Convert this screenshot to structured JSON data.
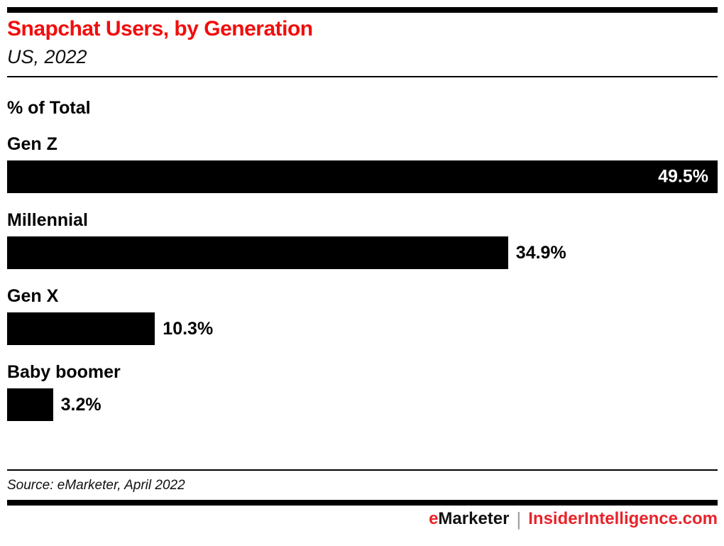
{
  "header": {
    "title": "Snapchat Users, by Generation",
    "subtitle": "US, 2022"
  },
  "chart_data": {
    "type": "bar",
    "orientation": "horizontal",
    "title": "Snapchat Users, by Generation",
    "subtitle": "US, 2022",
    "axis_title": "% of Total",
    "categories": [
      "Gen Z",
      "Millennial",
      "Gen X",
      "Baby boomer"
    ],
    "values": [
      49.5,
      34.9,
      10.3,
      3.2
    ],
    "value_labels": [
      "49.5%",
      "34.9%",
      "10.3%",
      "3.2%"
    ],
    "unit": "% of total",
    "xlim": [
      0,
      49.5
    ],
    "bar_color": "#000000",
    "value_label_positions": [
      "inside-end",
      "outside-end",
      "outside-end",
      "outside-end"
    ],
    "grid": false,
    "legend": false
  },
  "footer": {
    "source": "Source: eMarketer, April 2022",
    "brand_accent": "e",
    "brand_rest": "Marketer",
    "brand_pipe": "|",
    "brand_url": "InsiderIntelligence.com"
  },
  "colors": {
    "title_red": "#f20d0d",
    "brand_red": "#e8232a",
    "bar_black": "#000000",
    "pipe_gray": "#9b9b9b",
    "background": "#ffffff"
  }
}
